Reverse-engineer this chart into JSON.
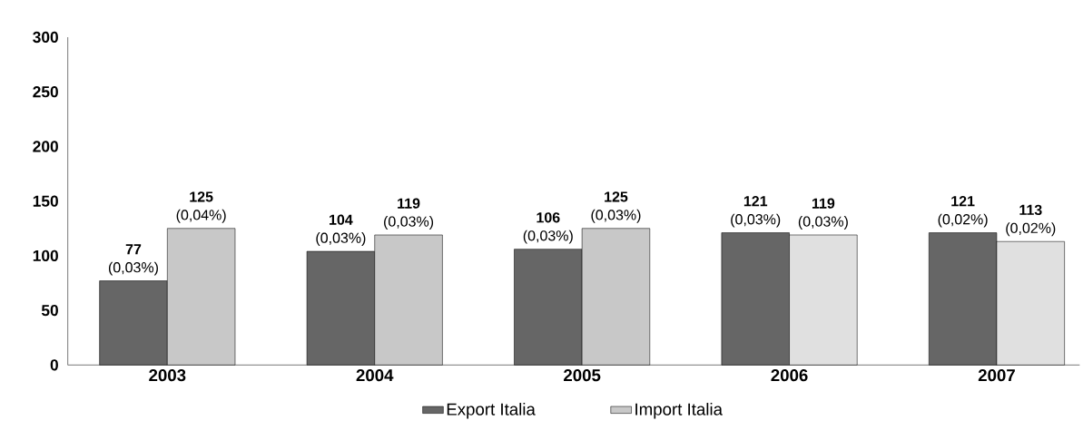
{
  "chart_data": {
    "type": "bar",
    "categories": [
      "2003",
      "2004",
      "2005",
      "2006",
      "2007"
    ],
    "series": [
      {
        "name": "Export Italia",
        "color": "#666666",
        "values": [
          77,
          104,
          106,
          121,
          121
        ],
        "value_labels": [
          "**77** (0,03%)",
          "**104** (0,03%)",
          "**106** (0,03%)",
          "**121** (0,03%)",
          "**121** (0,02%)"
        ]
      },
      {
        "name": "Import Italia",
        "color": "#c8c8c8",
        "colors": [
          "#c8c8c8",
          "#c8c8c8",
          "#c8c8c8",
          "#e0e0e0",
          "#e0e0e0"
        ],
        "values": [
          125,
          119,
          125,
          119,
          113
        ],
        "value_labels": [
          "**125** (0,04%)",
          "**119** (0,03%)",
          "**125** (0,03%)",
          "**119** (0,03%)",
          "**113** (0,02%)"
        ]
      }
    ],
    "ylim": [
      0,
      300
    ],
    "yticks": [
      0,
      50,
      100,
      150,
      200,
      250,
      300
    ],
    "grid": false,
    "legend": "bottom"
  }
}
